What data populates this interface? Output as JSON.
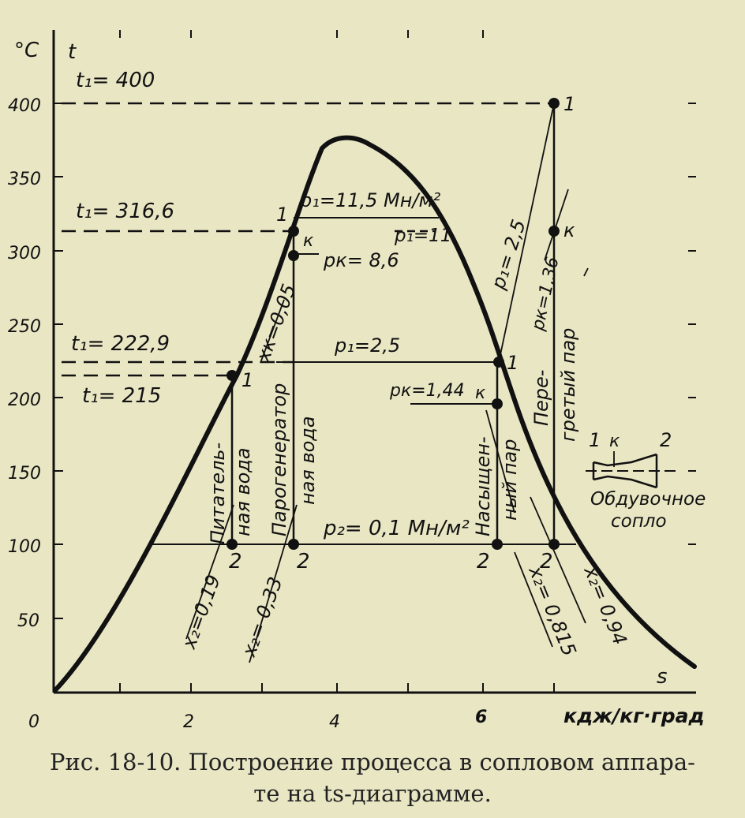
{
  "axes": {
    "y_unit": "°C",
    "y_symbol": "t",
    "x_symbol": "s",
    "x_unit": "кдж/кг·град",
    "y_ticks": [
      "400",
      "350",
      "300",
      "250",
      "200",
      "150",
      "100",
      "50"
    ],
    "x_ticks": [
      "0",
      "2",
      "4",
      "6"
    ]
  },
  "temperature_labels": {
    "t400": "t₁= 400",
    "t316": "t₁= 316,6",
    "t222": "t₁= 222,9",
    "t215": "t₁= 215"
  },
  "pressure_labels": {
    "p1_115": "p₁=11,5 Мн/м²",
    "p1_11": "p₁=11",
    "pk_86": "pк= 8,6",
    "p1_25a": "p₁=2,5",
    "pk_144": "pк=1,44",
    "p1_25b": "p₁= 2,5",
    "pk_136": "pк=1,36",
    "p2": "p₂= 0,1 Мн/м²"
  },
  "dryness_labels": {
    "xk": "xк=0,05",
    "x019": "x₂=0,19",
    "x033": "x₂= 0,33",
    "x0815": "x₂= 0,815",
    "x094": "x₂= 0,94"
  },
  "region_labels": {
    "feed_water_1": "Питатель-",
    "feed_water_2": "ная вода",
    "steam_gen_1": "Парогенератор",
    "steam_gen_2": "ная вода",
    "saturated_1": "Насыщен-",
    "saturated_2": "ный пар",
    "superheated_1": "Пере-",
    "superheated_2": "гретый пар"
  },
  "point_labels": {
    "one": "1",
    "k": "к",
    "two": "2"
  },
  "nozzle": {
    "label_1": "1",
    "label_k": "к",
    "label_2": "2",
    "caption_1": "Обдувочное",
    "caption_2": "сопло"
  },
  "caption": {
    "line1": "Рис. 18-10. Построение процесса в сопловом аппара-",
    "line2": "те на ts-диаграмме."
  }
}
